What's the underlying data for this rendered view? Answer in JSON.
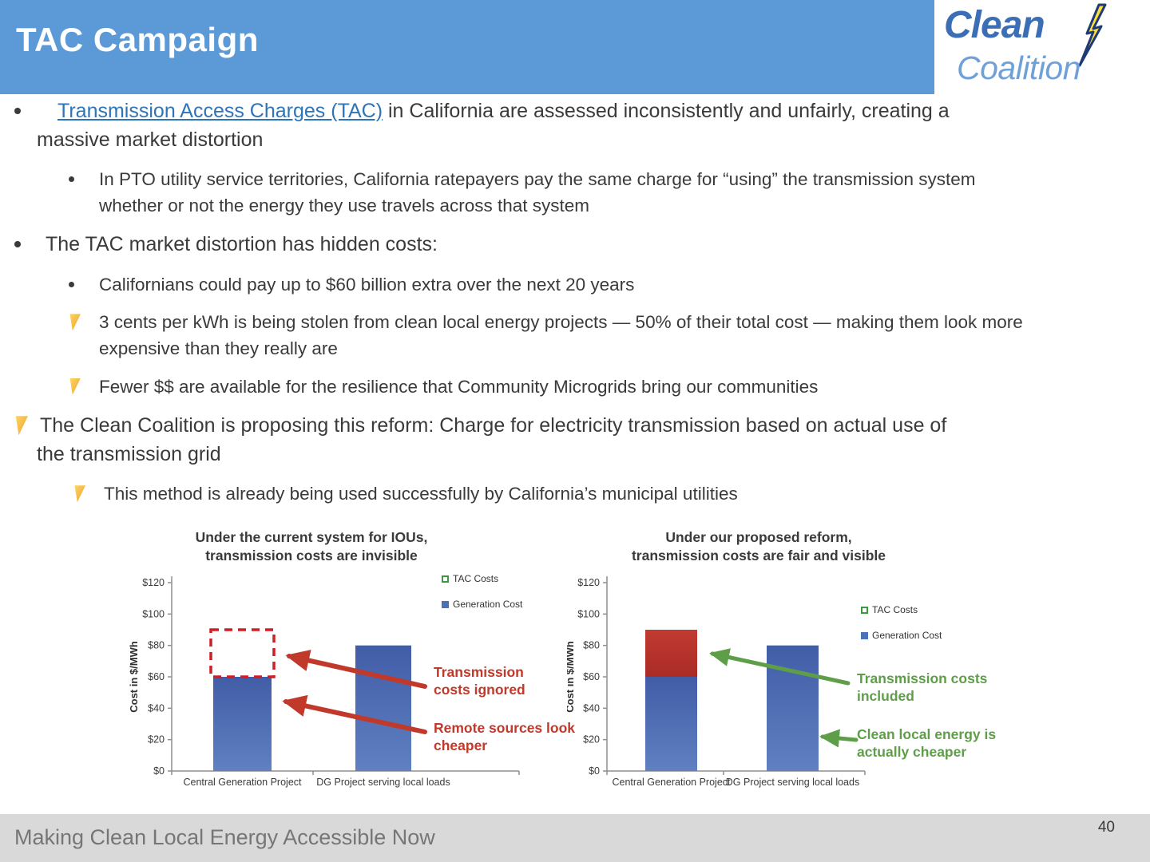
{
  "header": {
    "title": "TAC Campaign"
  },
  "logo": {
    "line1": "Clean",
    "line2": "Coalition",
    "bolt_icon": "lightning-bolt"
  },
  "bullets": {
    "b1": {
      "link": "Transmission Access Charges (TAC)",
      "rest": " in California are assessed inconsistently and unfairly, creating a massive market distortion"
    },
    "b1a": "In PTO utility service territories, California ratepayers pay the same charge for “using” the transmission system whether or not the energy they use travels across that system",
    "b2": "The TAC market distortion has hidden costs:",
    "b2a": "Californians could pay up to $60 billion extra over the next 20 years",
    "b2b": "3 cents per kWh is being stolen from clean local energy projects — 50% of their total cost — making them look more expensive than they really are",
    "b2c": "Fewer $$ are available for the resilience that Community Microgrids bring our communities",
    "b3": "The Clean Coalition is proposing this reform: Charge for electricity transmission based on actual use of the transmission grid",
    "b3a": "This method is already being used successfully by California’s municipal utilities"
  },
  "colors": {
    "header_blue": "#5b9ad6",
    "link_blue": "#2e74b8",
    "footer_bg": "#d9d9d9",
    "footer_text": "#767676",
    "bar_blue": "#4a6db4",
    "tac_red": "#bb3430",
    "annotation_red": "#c0392b",
    "annotation_green": "#5f9e49"
  },
  "chart_data": [
    {
      "type": "bar",
      "title_lines": [
        "Under the current system for IOUs,",
        "transmission costs are invisible"
      ],
      "ylabel": "Cost in $/MWh",
      "ylim": [
        0,
        120
      ],
      "ytick_step": 20,
      "ytick_prefix": "$",
      "grid": false,
      "categories": [
        "Central Generation Project",
        "DG Project serving local loads"
      ],
      "series": [
        {
          "name": "Generation Cost",
          "color": "#4a6db4",
          "values": [
            60,
            80
          ]
        },
        {
          "name": "TAC Costs",
          "style": "dashed-outline",
          "color": "#cf1f26",
          "values": [
            30,
            0
          ]
        }
      ],
      "legend": [
        {
          "label": "TAC Costs",
          "icon": "dashed-green-square"
        },
        {
          "label": "Generation Cost",
          "icon": "blue-square"
        }
      ],
      "legend_position": "right",
      "annotations": [
        {
          "text": "Transmission costs ignored",
          "color": "#c0392b"
        },
        {
          "text": "Remote sources look cheaper",
          "color": "#c0392b"
        }
      ]
    },
    {
      "type": "bar",
      "title_lines": [
        "Under our proposed reform,",
        "transmission costs are fair and visible"
      ],
      "ylabel": "Cost in $/MWh",
      "ylim": [
        0,
        120
      ],
      "ytick_step": 20,
      "ytick_prefix": "$",
      "grid": false,
      "categories": [
        "Central Generation Project",
        "DG Project serving local loads"
      ],
      "series": [
        {
          "name": "Generation Cost",
          "color": "#4a6db4",
          "values": [
            60,
            80
          ]
        },
        {
          "name": "TAC Costs",
          "style": "solid",
          "color": "#bb3430",
          "values": [
            30,
            0
          ]
        }
      ],
      "legend": [
        {
          "label": "TAC Costs",
          "icon": "dashed-green-square"
        },
        {
          "label": "Generation Cost",
          "icon": "blue-square"
        }
      ],
      "legend_position": "right",
      "annotations": [
        {
          "text": "Transmission costs included",
          "color": "#5f9e49"
        },
        {
          "text": "Clean local energy is actually cheaper",
          "color": "#5f9e49"
        }
      ]
    }
  ],
  "footer": {
    "tagline": "Making Clean Local Energy Accessible Now",
    "page_number": "40"
  }
}
